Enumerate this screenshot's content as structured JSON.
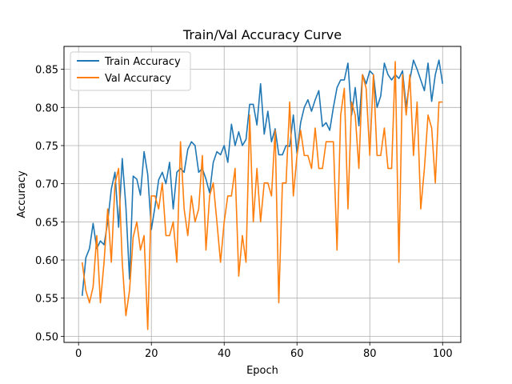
{
  "chart_data": {
    "type": "line",
    "title": "Train/Val Accuracy Curve",
    "xlabel": "Epoch",
    "ylabel": "Accuracy",
    "xlim": [
      -4,
      105
    ],
    "ylim": [
      0.492,
      0.88
    ],
    "xticks": [
      0,
      20,
      40,
      60,
      80,
      100
    ],
    "yticks": [
      0.5,
      0.55,
      0.6,
      0.65,
      0.7,
      0.75,
      0.8,
      0.85
    ],
    "grid": true,
    "legend_position": "top-left",
    "series": [
      {
        "name": "Train Accuracy",
        "color": "#1f77b4",
        "values": [
          0.553,
          0.603,
          0.615,
          0.648,
          0.615,
          0.625,
          0.62,
          0.65,
          0.693,
          0.715,
          0.643,
          0.733,
          0.67,
          0.575,
          0.71,
          0.706,
          0.685,
          0.742,
          0.712,
          0.64,
          0.67,
          0.705,
          0.715,
          0.7,
          0.728,
          0.667,
          0.715,
          0.72,
          0.715,
          0.745,
          0.755,
          0.75,
          0.715,
          0.72,
          0.706,
          0.688,
          0.728,
          0.742,
          0.738,
          0.75,
          0.728,
          0.778,
          0.75,
          0.768,
          0.75,
          0.758,
          0.804,
          0.804,
          0.777,
          0.831,
          0.765,
          0.795,
          0.755,
          0.772,
          0.738,
          0.738,
          0.75,
          0.749,
          0.79,
          0.74,
          0.78,
          0.8,
          0.81,
          0.795,
          0.81,
          0.822,
          0.775,
          0.78,
          0.77,
          0.8,
          0.826,
          0.836,
          0.836,
          0.858,
          0.79,
          0.826,
          0.776,
          0.843,
          0.831,
          0.848,
          0.843,
          0.8,
          0.815,
          0.858,
          0.843,
          0.836,
          0.843,
          0.838,
          0.848,
          0.8,
          0.836,
          0.862,
          0.85,
          0.836,
          0.822,
          0.858,
          0.808,
          0.843,
          0.862,
          0.831
        ]
      },
      {
        "name": "Val Accuracy",
        "color": "#ff7f0e",
        "values": [
          0.597,
          0.56,
          0.544,
          0.565,
          0.632,
          0.544,
          0.597,
          0.667,
          0.597,
          0.7,
          0.72,
          0.597,
          0.527,
          0.56,
          0.63,
          0.65,
          0.613,
          0.632,
          0.509,
          0.684,
          0.684,
          0.667,
          0.701,
          0.632,
          0.632,
          0.65,
          0.597,
          0.755,
          0.667,
          0.632,
          0.684,
          0.65,
          0.667,
          0.737,
          0.613,
          0.684,
          0.701,
          0.65,
          0.597,
          0.65,
          0.684,
          0.684,
          0.72,
          0.579,
          0.632,
          0.597,
          0.79,
          0.65,
          0.72,
          0.65,
          0.701,
          0.701,
          0.684,
          0.77,
          0.544,
          0.701,
          0.701,
          0.807,
          0.684,
          0.737,
          0.77,
          0.737,
          0.737,
          0.72,
          0.773,
          0.72,
          0.72,
          0.755,
          0.755,
          0.755,
          0.613,
          0.79,
          0.825,
          0.667,
          0.807,
          0.79,
          0.72,
          0.843,
          0.825,
          0.737,
          0.843,
          0.737,
          0.737,
          0.773,
          0.72,
          0.72,
          0.86,
          0.597,
          0.843,
          0.79,
          0.843,
          0.737,
          0.807,
          0.667,
          0.72,
          0.79,
          0.773,
          0.701,
          0.807,
          0.807
        ]
      }
    ]
  }
}
